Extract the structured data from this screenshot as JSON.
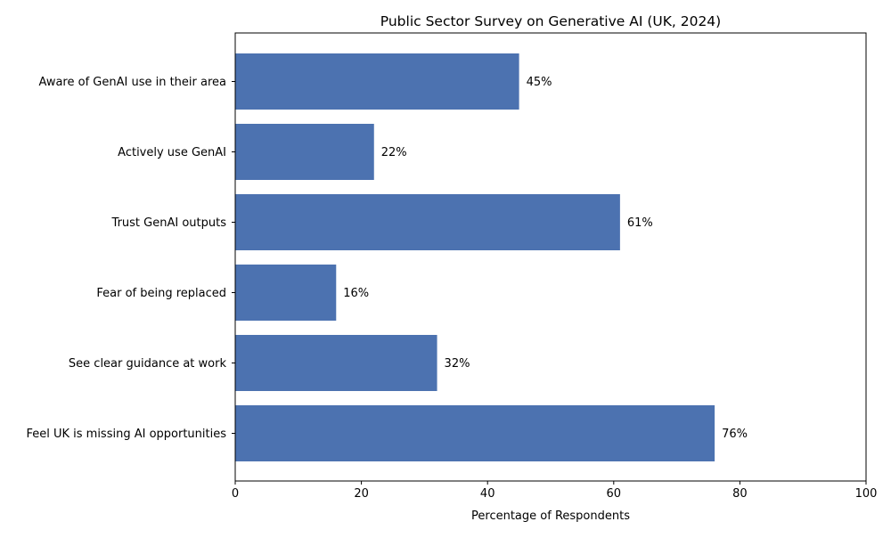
{
  "chart_data": {
    "type": "bar",
    "orientation": "horizontal",
    "title": "Public Sector Survey on Generative AI (UK, 2024)",
    "xlabel": "Percentage of Respondents",
    "ylabel": "",
    "xlim": [
      0,
      100
    ],
    "x_ticks": [
      0,
      20,
      40,
      60,
      80,
      100
    ],
    "categories": [
      "Aware of GenAI use in their area",
      "Actively use GenAI",
      "Trust GenAI outputs",
      "Fear of being replaced",
      "See clear guidance at work",
      "Feel UK is missing AI opportunities"
    ],
    "values": [
      45,
      22,
      61,
      16,
      32,
      76
    ],
    "value_label_suffix": "%",
    "bar_color": "#4c72b0",
    "grid": false,
    "legend": "none"
  }
}
